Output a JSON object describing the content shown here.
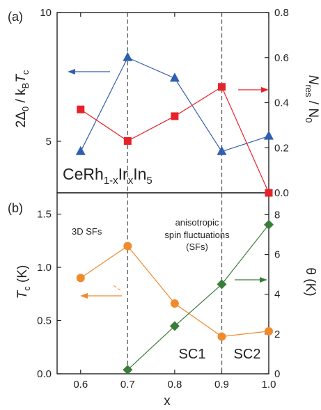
{
  "chart_data": [
    {
      "panel": "(a)",
      "type": "line",
      "x": [
        0.6,
        0.7,
        0.8,
        0.9,
        1.0
      ],
      "xlim": [
        0.55,
        1.0
      ],
      "left_axis": {
        "label_main": "2Δ",
        "label_sub0": "0",
        "label_mid": " / k",
        "label_subB": "B",
        "label_T": "T",
        "label_subc": "c",
        "ylim": [
          3.0,
          10.0
        ],
        "ticks": [
          5,
          10
        ],
        "tick_labels": [
          "5",
          "10"
        ]
      },
      "right_axis": {
        "label_N": "N",
        "label_subres": "res",
        "label_mid": " / N",
        "label_sub0": "0",
        "ylim": [
          0.0,
          0.8
        ],
        "ticks": [
          0.0,
          0.2,
          0.4,
          0.6,
          0.8
        ],
        "tick_labels": [
          "0.0",
          "0.2",
          "0.4",
          "0.6",
          "0.8"
        ]
      },
      "series": [
        {
          "axis": "left",
          "marker": "triangle",
          "color": "#2f5fb0",
          "values": [
            4.6,
            8.25,
            7.45,
            4.6,
            5.2
          ]
        },
        {
          "axis": "right",
          "marker": "square",
          "color": "#e8222a",
          "values": [
            0.37,
            0.23,
            0.34,
            0.47,
            0.0
          ]
        }
      ],
      "annotation": {
        "c1": "CeRh",
        "c1s": "1-x",
        "c2": "Ir",
        "c2s": "x",
        "c3": "In",
        "c3s": "5"
      }
    },
    {
      "panel": "(b)",
      "type": "line",
      "x": [
        0.6,
        0.7,
        0.8,
        0.9,
        1.0
      ],
      "xlim": [
        0.55,
        1.0
      ],
      "xlabel": "x",
      "xticks": [
        0.6,
        0.7,
        0.8,
        0.9,
        1.0
      ],
      "xtick_labels": [
        "0.6",
        "0.7",
        "0.8",
        "0.9",
        "1.0"
      ],
      "left_axis": {
        "label_T": "T",
        "label_subc": "c",
        "label_rest": " (K)",
        "ylim": [
          0.0,
          1.7
        ],
        "ticks": [
          0.0,
          0.5,
          1.0,
          1.5
        ],
        "tick_labels": [
          "0.0",
          "0.5",
          "1.0",
          "1.5"
        ]
      },
      "right_axis": {
        "label": "θ (K)",
        "ylim": [
          0,
          9.1
        ],
        "ticks": [
          0,
          2,
          4,
          6,
          8
        ],
        "tick_labels": [
          "0",
          "2",
          "4",
          "6",
          "8"
        ]
      },
      "series": [
        {
          "axis": "left",
          "marker": "circle",
          "color": "#f08a2c",
          "x": [
            0.6,
            0.7,
            0.8,
            0.9,
            1.0
          ],
          "values": [
            0.9,
            1.2,
            0.66,
            0.35,
            0.4
          ]
        },
        {
          "axis": "right",
          "marker": "diamond",
          "color": "#3a7d3a",
          "x": [
            0.7,
            0.8,
            0.9,
            1.0
          ],
          "values": [
            0.2,
            2.4,
            4.5,
            7.5
          ]
        }
      ],
      "labels": {
        "sfs3d": "3D SFs",
        "aniso1": "anisotropic",
        "aniso2": "spin fluctuations",
        "aniso3": "(SFs)",
        "sc1": "SC1",
        "sc2": "SC2"
      }
    }
  ],
  "vlines_x": [
    0.7,
    0.9
  ]
}
